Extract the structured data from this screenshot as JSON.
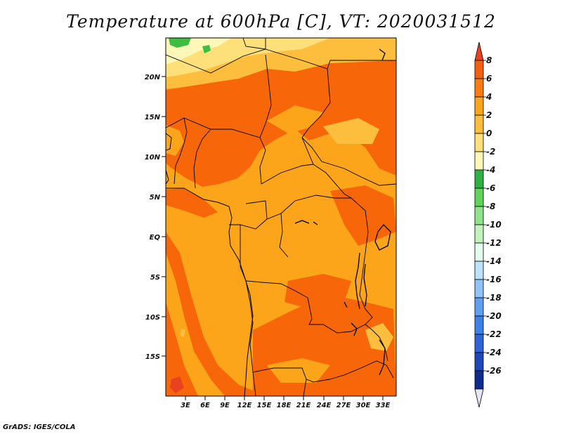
{
  "title": "Temperature at 600hPa [C], VT: 2020031512",
  "credit": "GrADS: IGES/COLA",
  "lat_ticks": [
    "20N",
    "15N",
    "10N",
    "5N",
    "EQ",
    "5S",
    "10S",
    "15S"
  ],
  "lon_ticks": [
    "3E",
    "6E",
    "9E",
    "12E",
    "15E",
    "18E",
    "21E",
    "24E",
    "27E",
    "30E",
    "33E"
  ],
  "colorbar": {
    "labels": [
      "8",
      "6",
      "4",
      "2",
      "0",
      "-2",
      "-4",
      "-6",
      "-8",
      "-10",
      "-12",
      "-14",
      "-16",
      "-18",
      "-20",
      "-22",
      "-24",
      "-26"
    ],
    "colors": [
      "#e8431e",
      "#f4600e",
      "#fb7d10",
      "#fca41a",
      "#fdbe3e",
      "#fde079",
      "#fdf7b8",
      "#2fb244",
      "#5fd35a",
      "#8ee38b",
      "#c3f3bc",
      "#e4fcf0",
      "#bde2fc",
      "#8fc3fa",
      "#5fa0f3",
      "#3d81ea",
      "#2e64d8",
      "#1c48bb",
      "#0f2b8e",
      "#e6e6f5"
    ]
  },
  "legend_colors": {
    "band_2_4": "#fca41a",
    "band_4_6": "#f8660a",
    "band_6_8": "#e8431e",
    "band_0_2": "#fdbe3e",
    "band_m2_0": "#fde079",
    "band_m4_m2": "#fdf7b8",
    "band_green": "#3dbe40"
  }
}
